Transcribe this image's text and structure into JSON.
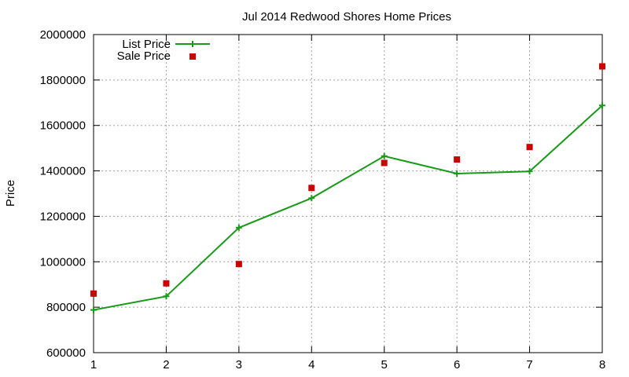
{
  "chart_data": {
    "type": "line",
    "title": "Jul 2014 Redwood Shores Home Prices",
    "xlabel": "",
    "ylabel": "Price",
    "x": [
      1,
      2,
      3,
      4,
      5,
      6,
      7,
      8
    ],
    "xlim": [
      1,
      8
    ],
    "ylim": [
      600000,
      2000000
    ],
    "xticks": [
      "1",
      "2",
      "3",
      "4",
      "5",
      "6",
      "7",
      "8"
    ],
    "yticks": [
      "600000",
      "800000",
      "1000000",
      "1200000",
      "1400000",
      "1600000",
      "1800000",
      "2000000"
    ],
    "grid": true,
    "legend_position": "top-left",
    "series": [
      {
        "name": "List Price",
        "style": "linespoints",
        "marker": "plus",
        "color": "#1a9a1a",
        "values": [
          788000,
          848000,
          1150000,
          1280000,
          1465000,
          1388000,
          1398000,
          1688000
        ]
      },
      {
        "name": "Sale Price",
        "style": "points",
        "marker": "square",
        "color": "#cc0000",
        "values": [
          860000,
          905000,
          990000,
          1325000,
          1435000,
          1450000,
          1505000,
          1860000
        ]
      }
    ]
  }
}
